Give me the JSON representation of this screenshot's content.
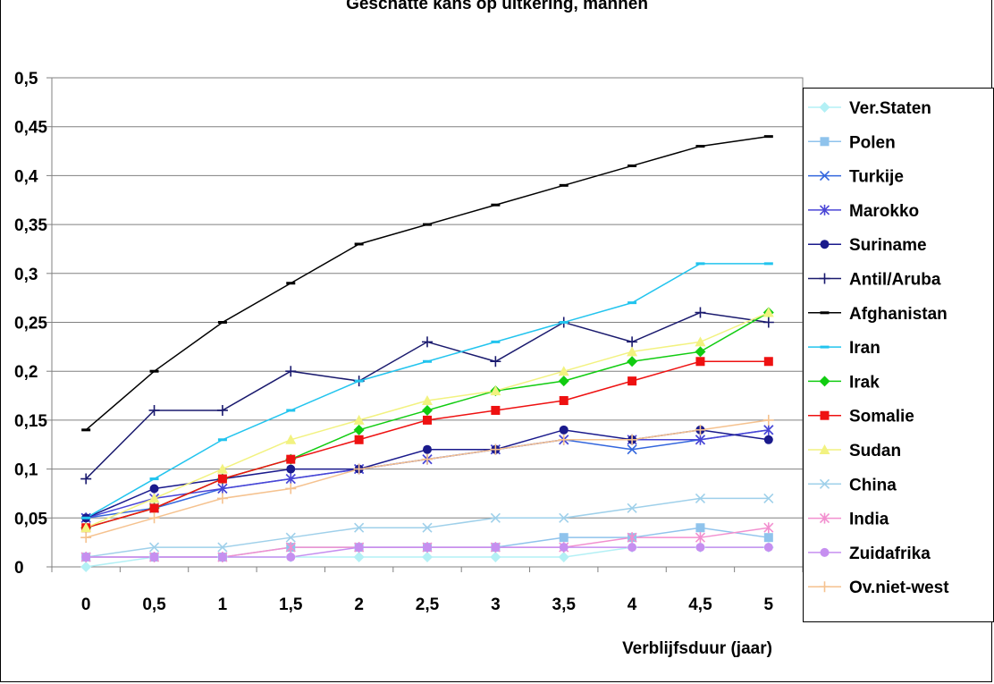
{
  "chart_data": {
    "type": "line",
    "title": "Geschatte kans op uitkering, mannen",
    "xlabel": "Verblijfsduur (jaar)",
    "ylabel": "",
    "x": [
      "0",
      "0,5",
      "1",
      "1,5",
      "2",
      "2,5",
      "3",
      "3,5",
      "4",
      "4,5",
      "5"
    ],
    "ylim": [
      0,
      0.5
    ],
    "yticks": [
      "0",
      "0,05",
      "0,1",
      "0,15",
      "0,2",
      "0,25",
      "0,3",
      "0,35",
      "0,4",
      "0,45",
      "0,5"
    ],
    "grid": true,
    "legend_position": "right",
    "series": [
      {
        "name": "Ver.Staten",
        "color": "#b3f0f5",
        "marker": "diamond",
        "values": [
          0,
          0.01,
          0.01,
          0.01,
          0.01,
          0.01,
          0.01,
          0.01,
          0.02,
          0.02,
          0.02
        ]
      },
      {
        "name": "Polen",
        "color": "#8fc3ec",
        "marker": "square",
        "values": [
          0.01,
          0.01,
          0.01,
          0.02,
          0.02,
          0.02,
          0.02,
          0.03,
          0.03,
          0.04,
          0.03
        ]
      },
      {
        "name": "Turkije",
        "color": "#3366dd",
        "marker": "x",
        "values": [
          0.05,
          0.06,
          0.08,
          0.09,
          0.1,
          0.11,
          0.12,
          0.13,
          0.12,
          0.13,
          0.14
        ]
      },
      {
        "name": "Marokko",
        "color": "#4a45d6",
        "marker": "star",
        "values": [
          0.05,
          0.07,
          0.08,
          0.09,
          0.1,
          0.11,
          0.12,
          0.13,
          0.13,
          0.13,
          0.14
        ]
      },
      {
        "name": "Suriname",
        "color": "#1a1a8c",
        "marker": "circle",
        "values": [
          0.05,
          0.08,
          0.09,
          0.1,
          0.1,
          0.12,
          0.12,
          0.14,
          0.13,
          0.14,
          0.13
        ]
      },
      {
        "name": "Antil/Aruba",
        "color": "#1a1a6e",
        "marker": "plus",
        "values": [
          0.09,
          0.16,
          0.16,
          0.2,
          0.19,
          0.23,
          0.21,
          0.25,
          0.23,
          0.26,
          0.25
        ]
      },
      {
        "name": "Afghanistan",
        "color": "#000000",
        "marker": "dash",
        "values": [
          0.14,
          0.2,
          0.25,
          0.29,
          0.33,
          0.35,
          0.37,
          0.39,
          0.41,
          0.43,
          0.44
        ]
      },
      {
        "name": "Iran",
        "color": "#22c4ee",
        "marker": "dash",
        "values": [
          0.05,
          0.09,
          0.13,
          0.16,
          0.19,
          0.21,
          0.23,
          0.25,
          0.27,
          0.31,
          0.31
        ]
      },
      {
        "name": "Irak",
        "color": "#11cc11",
        "marker": "diamond",
        "values": [
          0.04,
          0.06,
          0.09,
          0.11,
          0.14,
          0.16,
          0.18,
          0.19,
          0.21,
          0.22,
          0.26
        ]
      },
      {
        "name": "Somalie",
        "color": "#ee1111",
        "marker": "square",
        "values": [
          0.04,
          0.06,
          0.09,
          0.11,
          0.13,
          0.15,
          0.16,
          0.17,
          0.19,
          0.21,
          0.21
        ]
      },
      {
        "name": "Sudan",
        "color": "#f2f280",
        "marker": "triangle",
        "values": [
          0.04,
          0.07,
          0.1,
          0.13,
          0.15,
          0.17,
          0.18,
          0.2,
          0.22,
          0.23,
          0.26
        ]
      },
      {
        "name": "China",
        "color": "#9fd0ea",
        "marker": "x",
        "values": [
          0.01,
          0.02,
          0.02,
          0.03,
          0.04,
          0.04,
          0.05,
          0.05,
          0.06,
          0.07,
          0.07
        ]
      },
      {
        "name": "India",
        "color": "#f28fcf",
        "marker": "star",
        "values": [
          0.01,
          0.01,
          0.01,
          0.02,
          0.02,
          0.02,
          0.02,
          0.02,
          0.03,
          0.03,
          0.04
        ]
      },
      {
        "name": "Zuidafrika",
        "color": "#c68ff0",
        "marker": "circle",
        "values": [
          0.01,
          0.01,
          0.01,
          0.01,
          0.02,
          0.02,
          0.02,
          0.02,
          0.02,
          0.02,
          0.02
        ]
      },
      {
        "name": "Ov.niet-west",
        "color": "#f5c28f",
        "marker": "plus",
        "values": [
          0.03,
          0.05,
          0.07,
          0.08,
          0.1,
          0.11,
          0.12,
          0.13,
          0.13,
          0.14,
          0.15
        ]
      }
    ]
  }
}
